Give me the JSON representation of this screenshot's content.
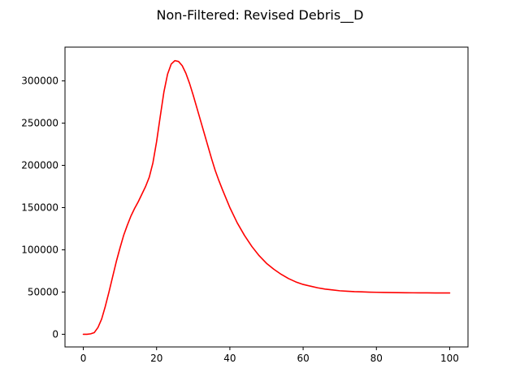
{
  "chart_data": {
    "type": "line",
    "title": "Non-Filtered: Revised Debris__D",
    "xlabel": "",
    "ylabel": "",
    "xlim": [
      -5,
      105
    ],
    "ylim": [
      -15000,
      340000
    ],
    "x_ticks": [
      0,
      20,
      40,
      60,
      80,
      100
    ],
    "x_tick_labels": [
      "0",
      "20",
      "40",
      "60",
      "80",
      "100"
    ],
    "y_ticks": [
      0,
      50000,
      100000,
      150000,
      200000,
      250000,
      300000
    ],
    "y_tick_labels": [
      "0",
      "50000",
      "100000",
      "150000",
      "200000",
      "250000",
      "300000"
    ],
    "grid": false,
    "legend": "none",
    "series": [
      {
        "color": "#ff0000",
        "x": [
          0,
          1,
          2,
          3,
          4,
          5,
          6,
          7,
          8,
          9,
          10,
          11,
          12,
          13,
          14,
          15,
          16,
          17,
          18,
          19,
          20,
          21,
          22,
          23,
          24,
          25,
          26,
          27,
          28,
          29,
          30,
          31,
          32,
          33,
          34,
          35,
          36,
          37,
          38,
          40,
          42,
          44,
          46,
          48,
          50,
          52,
          54,
          56,
          58,
          60,
          62,
          64,
          66,
          68,
          70,
          72,
          74,
          76,
          78,
          80,
          82,
          84,
          86,
          88,
          90,
          92,
          94,
          96,
          98,
          100
        ],
        "y": [
          0,
          0,
          500,
          2000,
          8000,
          18000,
          33000,
          50000,
          68000,
          86000,
          102000,
          117000,
          129000,
          140000,
          149000,
          157000,
          166000,
          175000,
          186000,
          203000,
          228000,
          258000,
          287000,
          308000,
          320000,
          324000,
          323000,
          318000,
          309000,
          297000,
          283000,
          268000,
          253000,
          238000,
          223000,
          208000,
          194000,
          182000,
          171000,
          150000,
          132000,
          117000,
          104000,
          93000,
          84000,
          77000,
          71000,
          66000,
          62000,
          59000,
          57000,
          55000,
          53500,
          52500,
          51500,
          51000,
          50500,
          50200,
          49900,
          49700,
          49500,
          49400,
          49300,
          49200,
          49100,
          49000,
          49000,
          48900,
          48900,
          48900
        ]
      }
    ]
  }
}
